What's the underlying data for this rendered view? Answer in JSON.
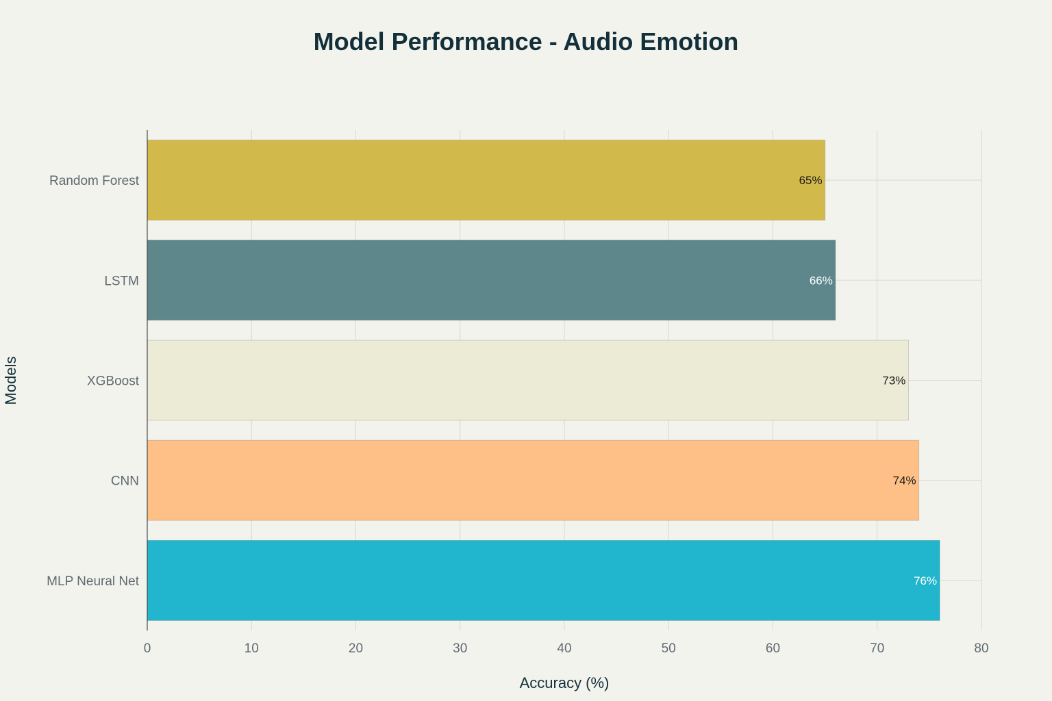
{
  "chart_data": {
    "type": "bar",
    "orientation": "horizontal",
    "title": "Model Performance - Audio Emotion",
    "xlabel": "Accuracy (%)",
    "ylabel": "Models",
    "categories": [
      "Random Forest",
      "LSTM",
      "XGBoost",
      "CNN",
      "MLP Neural Net"
    ],
    "values": [
      65,
      66,
      73,
      74,
      76
    ],
    "data_labels": [
      "65%",
      "66%",
      "73%",
      "74%",
      "76%"
    ],
    "colors": [
      "#d2b94c",
      "#5e878c",
      "#ecebd6",
      "#fec086",
      "#21b6cd"
    ],
    "label_colors": [
      "#1a1a1a",
      "#ffffff",
      "#1a1a1a",
      "#1a1a1a",
      "#ffffff"
    ],
    "xlim": [
      0,
      80
    ],
    "xticks": [
      0,
      10,
      20,
      30,
      40,
      50,
      60,
      70,
      80
    ],
    "grid": true,
    "legend": "none"
  }
}
